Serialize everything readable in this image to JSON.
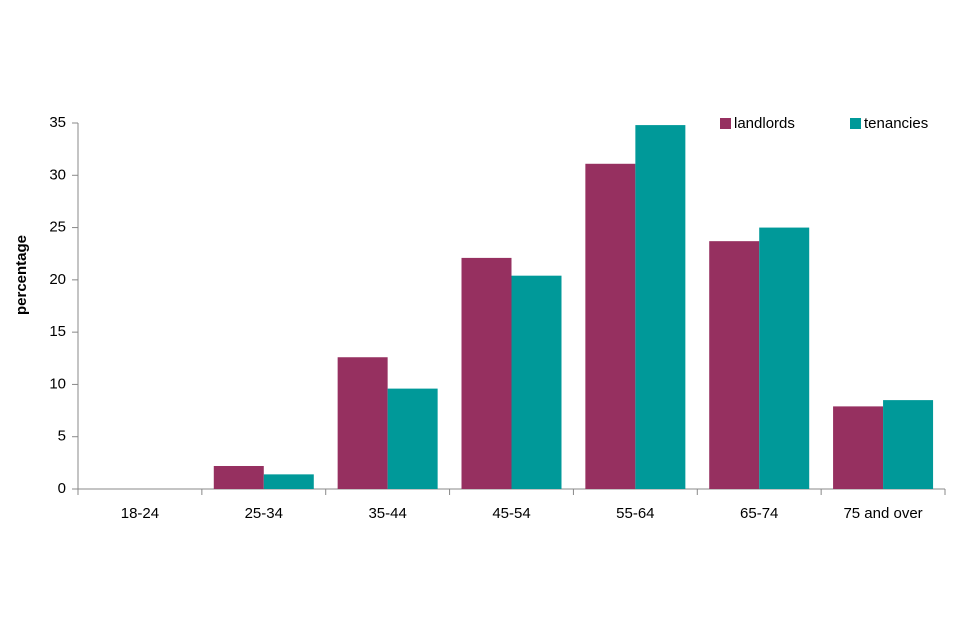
{
  "chart_data": {
    "type": "bar",
    "y_label": "percentage",
    "categories": [
      "18-24",
      "25-34",
      "35-44",
      "45-54",
      "55-64",
      "65-74",
      "75 and over"
    ],
    "series": [
      {
        "name": "landlords",
        "color": "#963060",
        "values": [
          0,
          2.2,
          12.6,
          22.1,
          31.1,
          23.7,
          7.9
        ]
      },
      {
        "name": "tenancies",
        "color": "#009999",
        "values": [
          0,
          1.4,
          9.6,
          20.4,
          34.8,
          25.0,
          8.5
        ]
      }
    ],
    "ylim": [
      0,
      35
    ],
    "yticks": [
      0,
      5,
      10,
      15,
      20,
      25,
      30,
      35
    ],
    "grid": false,
    "legend": "top-right"
  }
}
